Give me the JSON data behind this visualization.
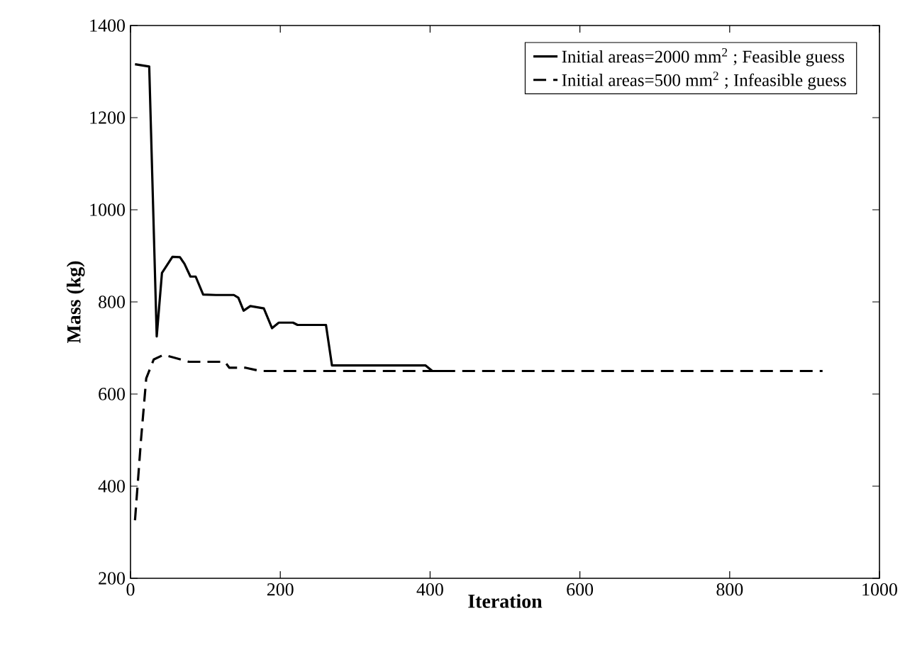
{
  "chart_data": {
    "type": "line",
    "xlabel": "Iteration",
    "ylabel": "Mass (kg)",
    "xlim": [
      0,
      1000
    ],
    "ylim": [
      200,
      1400
    ],
    "xticks": [
      0,
      200,
      400,
      600,
      800,
      1000
    ],
    "yticks": [
      200,
      400,
      600,
      800,
      1000,
      1200,
      1400
    ],
    "grid": false,
    "legend": "top right",
    "marker": "none",
    "series": [
      {
        "name": "Initial areas=2000 mm$^{2}$ ; Feasible guess",
        "color": "#000000",
        "line_style": "solid",
        "x": [
          6,
          25,
          35,
          42,
          56,
          66,
          72,
          80,
          87,
          97,
          114,
          138,
          144,
          151,
          160,
          178,
          189,
          198,
          217,
          223,
          261,
          269,
          394,
          403,
          430
        ],
        "values": [
          1316,
          1311,
          725,
          863,
          898,
          897,
          883,
          855,
          855,
          816,
          815,
          815,
          809,
          781,
          791,
          786,
          743,
          755,
          755,
          750,
          750,
          662,
          662,
          650,
          650
        ]
      },
      {
        "name": "Initial areas=500 mm$^{2}$ ; Infeasible guess",
        "color": "#000000",
        "line_style": "dashed",
        "x": [
          6,
          14,
          21,
          31,
          44,
          56,
          78,
          126,
          132,
          154,
          173,
          924
        ],
        "values": [
          326,
          500,
          634,
          675,
          685,
          680,
          670,
          670,
          657,
          657,
          650,
          650
        ]
      }
    ]
  }
}
